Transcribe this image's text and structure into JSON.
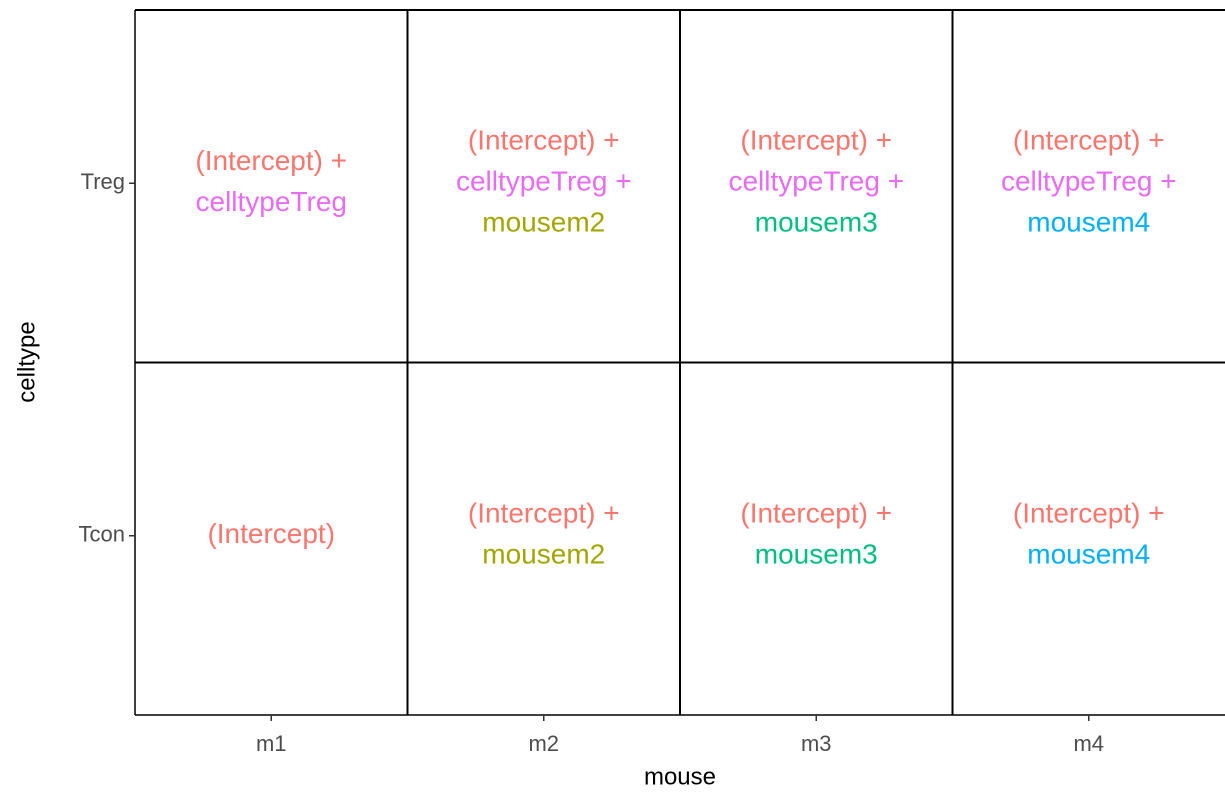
{
  "x_axis": {
    "title": "mouse",
    "categories": [
      "m1",
      "m2",
      "m3",
      "m4"
    ]
  },
  "y_axis": {
    "title": "celltype",
    "categories": [
      "Treg",
      "Tcon"
    ]
  },
  "rows": [
    {
      "cells": [
        [
          {
            "text": "(Intercept) +",
            "color": "#F8766D"
          },
          {
            "text": "celltypeTreg",
            "color": "#E76BF3"
          }
        ],
        [
          {
            "text": "(Intercept) +",
            "color": "#F8766D"
          },
          {
            "text": "celltypeTreg +",
            "color": "#E76BF3"
          },
          {
            "text": "mousem2",
            "color": "#A3A500"
          }
        ],
        [
          {
            "text": "(Intercept) +",
            "color": "#F8766D"
          },
          {
            "text": "celltypeTreg +",
            "color": "#E76BF3"
          },
          {
            "text": "mousem3",
            "color": "#00BF7D"
          }
        ],
        [
          {
            "text": "(Intercept) +",
            "color": "#F8766D"
          },
          {
            "text": "celltypeTreg +",
            "color": "#E76BF3"
          },
          {
            "text": "mousem4",
            "color": "#00B0F6"
          }
        ]
      ]
    },
    {
      "cells": [
        [
          {
            "text": "(Intercept)",
            "color": "#F8766D"
          }
        ],
        [
          {
            "text": "(Intercept) +",
            "color": "#F8766D"
          },
          {
            "text": "mousem2",
            "color": "#A3A500"
          }
        ],
        [
          {
            "text": "(Intercept) +",
            "color": "#F8766D"
          },
          {
            "text": "mousem3",
            "color": "#00BF7D"
          }
        ],
        [
          {
            "text": "(Intercept) +",
            "color": "#F8766D"
          },
          {
            "text": "mousem4",
            "color": "#00B0F6"
          }
        ]
      ]
    }
  ]
}
